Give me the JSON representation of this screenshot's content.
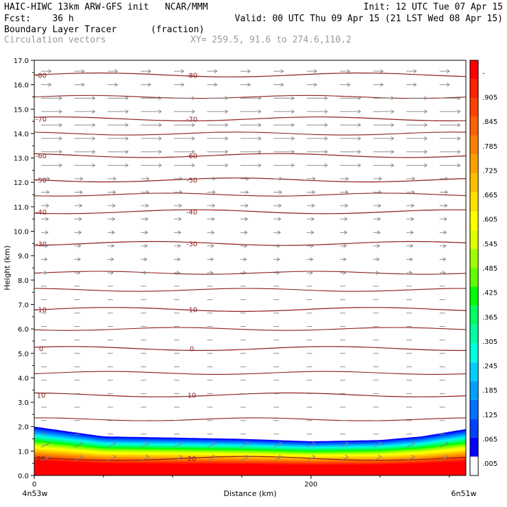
{
  "header": {
    "line1_left": "HAIC-HIWC 13km ARW-GFS init   NCAR/MMM",
    "line1_right": "Init: 12 UTC Tue 07 Apr 15",
    "line2_left": "Fcst:    36 h",
    "line2_right": "Valid: 00 UTC Thu 09 Apr 15 (21 LST Wed 08 Apr 15)",
    "line3_field": "Boundary Layer Tracer",
    "line3_units": "(fraction)",
    "line4_field": "Circulation vectors",
    "line4_xy": "XY= 259.5, 91.6 to 274.6,110.2"
  },
  "colors": {
    "contour": "#8b1a1a",
    "vector": "#808080",
    "colorbar": [
      "#ffffff",
      "#0000ff",
      "#0040ff",
      "#0070ff",
      "#00a0ff",
      "#00d0ff",
      "#00ffe0",
      "#00ffa0",
      "#00ff60",
      "#00ff00",
      "#60ff00",
      "#a0ff00",
      "#e0ff00",
      "#ffff00",
      "#ffe000",
      "#ffc000",
      "#ffa000",
      "#ff8000",
      "#ff6000",
      "#ff4000",
      "#ff2000",
      "#ff0000"
    ]
  },
  "chart_data": {
    "type": "heatmap",
    "title": "Boundary Layer Tracer",
    "units": "(fraction)",
    "overlay": "Circulation vectors",
    "xlabel": "Distance (km)",
    "ylabel": "Height (km)",
    "xlim": [
      0,
      312
    ],
    "ylim": [
      0,
      17
    ],
    "x_ticks": [
      0,
      200
    ],
    "y_ticks": [
      "0.0",
      "1.0",
      "2.0",
      "3.0",
      "4.0",
      "5.0",
      "6.0",
      "7.0",
      "8.0",
      "9.0",
      "10.0",
      "11.0",
      "12.0",
      "13.0",
      "14.0",
      "15.0",
      "16.0",
      "17.0"
    ],
    "x_endpoints": [
      "4n53w",
      "6n51w"
    ],
    "colorbar_labels": [
      ".005",
      ".065",
      ".125",
      ".185",
      ".245",
      ".305",
      ".365",
      ".425",
      ".485",
      ".545",
      ".605",
      ".665",
      ".725",
      ".785",
      ".845",
      ".905",
      "-"
    ],
    "temperature_contours": [
      {
        "label": "-80",
        "height": 16.4
      },
      {
        "label": "-70",
        "height": 14.6
      },
      {
        "label": "-60",
        "height": 13.1
      },
      {
        "label": "-50",
        "height": 12.1
      },
      {
        "label": "-40",
        "height": 10.8
      },
      {
        "label": "-30",
        "height": 9.5
      },
      {
        "label": "-10",
        "height": 6.8
      },
      {
        "label": "0",
        "height": 5.2
      },
      {
        "label": "10",
        "height": 3.3
      },
      {
        "label": "20",
        "height": 0.7
      }
    ],
    "boundary_layer_top": [
      {
        "x": 0,
        "height": 2.0
      },
      {
        "x": 50,
        "height": 1.6
      },
      {
        "x": 100,
        "height": 1.55
      },
      {
        "x": 150,
        "height": 1.5
      },
      {
        "x": 200,
        "height": 1.4
      },
      {
        "x": 250,
        "height": 1.45
      },
      {
        "x": 280,
        "height": 1.6
      },
      {
        "x": 312,
        "height": 1.9
      }
    ]
  }
}
